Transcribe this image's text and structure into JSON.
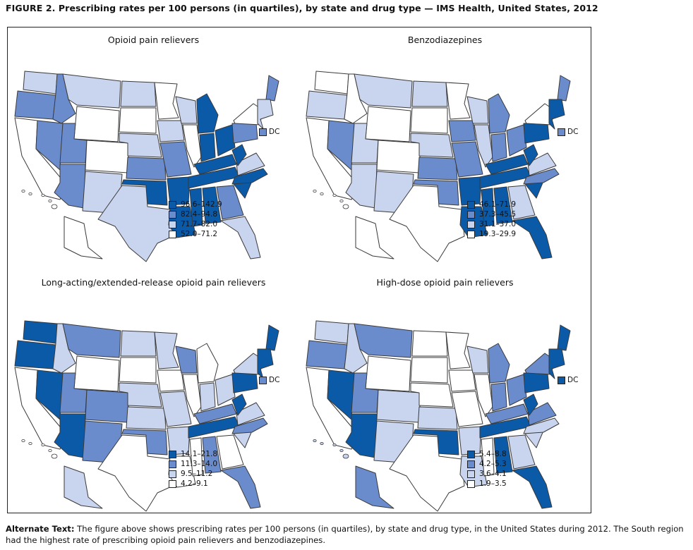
{
  "figure_title": "FIGURE 2. Prescribing rates per 100 persons (in quartiles), by state and drug type — IMS Health, United States, 2012",
  "colors": {
    "q4": "#0b5aa8",
    "q3": "#6a8ccc",
    "q2": "#c9d4ee",
    "q1": "#ffffff",
    "stroke": "#3a3a3a"
  },
  "dc_label": "DC",
  "panels": [
    {
      "title": "Opioid pain relievers",
      "dc_quartile": "q3",
      "legend": [
        "96.6–142.9",
        "82.4–94.8",
        "71.7–82.0",
        "52.0–71.2"
      ],
      "states": {
        "WA": "q2",
        "OR": "q3",
        "CA": "q1",
        "NV": "q3",
        "ID": "q3",
        "MT": "q2",
        "WY": "q1",
        "UT": "q3",
        "AZ": "q3",
        "CO": "q1",
        "NM": "q2",
        "ND": "q2",
        "SD": "q1",
        "NE": "q2",
        "KS": "q3",
        "OK": "q4",
        "TX": "q2",
        "MN": "q1",
        "IA": "q2",
        "MO": "q3",
        "AR": "q4",
        "LA": "q4",
        "WI": "q2",
        "IL": "q1",
        "MI": "q4",
        "IN": "q4",
        "OH": "q4",
        "KY": "q4",
        "TN": "q4",
        "MS": "q4",
        "AL": "q4",
        "GA": "q3",
        "FL": "q2",
        "SC": "q4",
        "NC": "q4",
        "VA": "q2",
        "WV": "q4",
        "PA": "q3",
        "NY": "q1",
        "ME": "q3",
        "NE_REG": "q2",
        "AK": "q1",
        "HI": "q1"
      }
    },
    {
      "title": "Benzodiazepines",
      "dc_quartile": "q3",
      "legend": [
        "46.1–71.9",
        "37.3–45.5",
        "31.1–37.0",
        "19.3–29.9"
      ],
      "states": {
        "WA": "q1",
        "OR": "q2",
        "CA": "q1",
        "NV": "q3",
        "ID": "q1",
        "MT": "q2",
        "WY": "q1",
        "UT": "q2",
        "AZ": "q2",
        "CO": "q1",
        "NM": "q2",
        "ND": "q2",
        "SD": "q1",
        "NE": "q2",
        "KS": "q3",
        "OK": "q3",
        "TX": "q1",
        "MN": "q1",
        "IA": "q3",
        "MO": "q3",
        "AR": "q4",
        "LA": "q4",
        "WI": "q2",
        "IL": "q2",
        "MI": "q3",
        "IN": "q3",
        "OH": "q3",
        "KY": "q4",
        "TN": "q4",
        "MS": "q4",
        "AL": "q4",
        "GA": "q2",
        "FL": "q4",
        "SC": "q4",
        "NC": "q3",
        "VA": "q2",
        "WV": "q4",
        "PA": "q4",
        "NY": "q1",
        "ME": "q3",
        "NE_REG": "q4",
        "AK": "q1",
        "HI": "q1"
      }
    },
    {
      "title": "Long-acting/extended-release opioid pain relievers",
      "dc_quartile": "q3",
      "legend": [
        "14.1–21.8",
        "11.3–14.0",
        "9.5–11.2",
        "4.2–9.1"
      ],
      "states": {
        "WA": "q4",
        "OR": "q4",
        "CA": "q1",
        "NV": "q4",
        "ID": "q2",
        "MT": "q3",
        "WY": "q1",
        "UT": "q3",
        "AZ": "q4",
        "CO": "q3",
        "NM": "q3",
        "ND": "q2",
        "SD": "q1",
        "NE": "q2",
        "KS": "q2",
        "OK": "q3",
        "TX": "q1",
        "MN": "q2",
        "IA": "q1",
        "MO": "q2",
        "AR": "q2",
        "LA": "q1",
        "WI": "q3",
        "IL": "q1",
        "MI": "q1",
        "IN": "q2",
        "OH": "q2",
        "KY": "q3",
        "TN": "q4",
        "MS": "q1",
        "AL": "q3",
        "GA": "q1",
        "FL": "q3",
        "SC": "q2",
        "NC": "q3",
        "VA": "q2",
        "WV": "q4",
        "PA": "q4",
        "NY": "q2",
        "ME": "q4",
        "NE_REG": "q4",
        "AK": "q2",
        "HI": "q1"
      }
    },
    {
      "title": "High-dose opioid pain relievers",
      "dc_quartile": "q4",
      "legend": [
        "5.4–8.8",
        "4.2–5.3",
        "3.6–4.1",
        "1.9–3.5"
      ],
      "states": {
        "WA": "q2",
        "OR": "q3",
        "CA": "q1",
        "NV": "q4",
        "ID": "q2",
        "MT": "q3",
        "WY": "q1",
        "UT": "q3",
        "AZ": "q4",
        "CO": "q2",
        "NM": "q2",
        "ND": "q1",
        "SD": "q1",
        "NE": "q1",
        "KS": "q2",
        "OK": "q4",
        "TX": "q1",
        "MN": "q1",
        "IA": "q1",
        "MO": "q1",
        "AR": "q2",
        "LA": "q2",
        "WI": "q2",
        "IL": "q1",
        "MI": "q3",
        "IN": "q3",
        "OH": "q3",
        "KY": "q3",
        "TN": "q4",
        "MS": "q1",
        "AL": "q4",
        "GA": "q2",
        "FL": "q4",
        "SC": "q2",
        "NC": "q2",
        "VA": "q3",
        "WV": "q4",
        "PA": "q4",
        "NY": "q3",
        "ME": "q4",
        "NE_REG": "q4",
        "AK": "q3",
        "HI": "q2"
      }
    }
  ],
  "alt_label": "Alternate Text:",
  "alt_text": " The figure above shows prescribing rates per 100 persons (in quartiles), by state and drug type, in the United States during 2012. The South region had the highest rate of prescribing opioid pain relievers and benzodiazepines."
}
